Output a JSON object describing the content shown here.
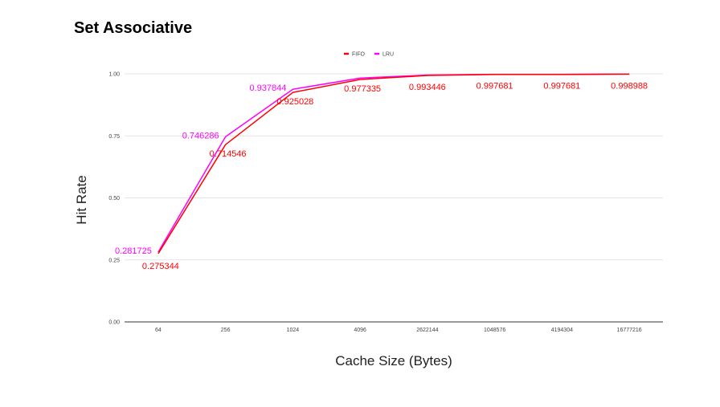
{
  "chart_data": {
    "type": "line",
    "title": "Set Associative",
    "xlabel": "Cache Size (Bytes)",
    "ylabel": "Hit Rate",
    "categories": [
      "64",
      "256",
      "1024",
      "4096",
      "2622144",
      "1048576",
      "4194304",
      "16777216"
    ],
    "yticks": [
      "0.00",
      "0.25",
      "0.50",
      "0.75",
      "1.00"
    ],
    "ylim": [
      0,
      1
    ],
    "grid": true,
    "legend_position": "top",
    "series": [
      {
        "name": "FIFO",
        "color": "#ff0000",
        "values": [
          0.275344,
          0.714546,
          0.925028,
          0.977335,
          0.993446,
          0.997681,
          0.997681,
          0.998988
        ],
        "labels": [
          "0.275344",
          "0.714546",
          "0.925028",
          "0.977335",
          "0.993446",
          "0.997681",
          "0.997681",
          "0.998988"
        ]
      },
      {
        "name": "LRU",
        "color": "#ff00ff",
        "values": [
          0.281725,
          0.746286,
          0.937844,
          0.983,
          0.995,
          0.998,
          0.998,
          0.999
        ],
        "labels": [
          "0.281725",
          "0.746286",
          "0.937844",
          "",
          "",
          "",
          "",
          ""
        ]
      }
    ]
  }
}
